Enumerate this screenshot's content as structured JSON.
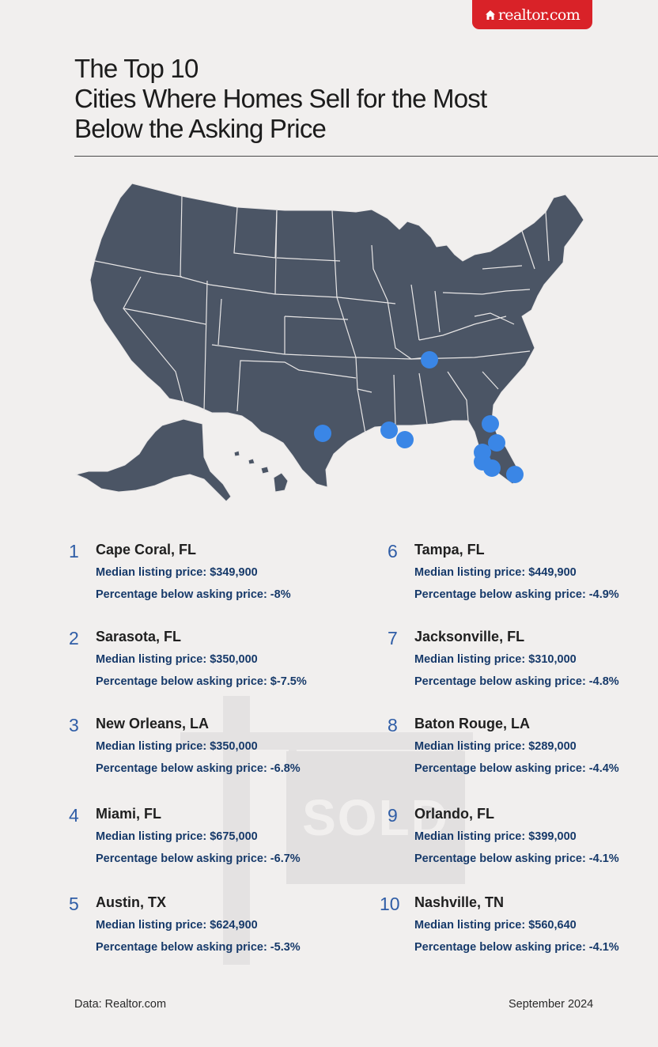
{
  "brand": {
    "logo_text": "realtor.com",
    "color": "#d92228"
  },
  "title": {
    "line1": "The Top 10",
    "line2": "Cities Where Homes Sell for the Most",
    "line3": "Below the Asking Price"
  },
  "map": {
    "land_color": "#4b5565",
    "marker_color": "#3a86e6",
    "watermark_text": "SOLD"
  },
  "cities": [
    {
      "rank": "1",
      "name": "Cape Coral, FL",
      "median_line": "Median listing price: $349,900",
      "pct_line": "Percentage below asking price: -8%"
    },
    {
      "rank": "2",
      "name": "Sarasota, FL",
      "median_line": "Median listing price: $350,000",
      "pct_line": "Percentage below asking price: $-7.5%"
    },
    {
      "rank": "3",
      "name": "New Orleans, LA",
      "median_line": "Median listing price: $350,000",
      "pct_line": "Percentage below asking price: -6.8%"
    },
    {
      "rank": "4",
      "name": "Miami, FL",
      "median_line": "Median listing price: $675,000",
      "pct_line": "Percentage below asking price: -6.7%"
    },
    {
      "rank": "5",
      "name": "Austin, TX",
      "median_line": "Median listing price: $624,900",
      "pct_line": "Percentage below asking price: -5.3%"
    },
    {
      "rank": "6",
      "name": "Tampa, FL",
      "median_line": "Median listing price: $449,900",
      "pct_line": "Percentage below asking price: -4.9%"
    },
    {
      "rank": "7",
      "name": "Jacksonville, FL",
      "median_line": "Median listing price: $310,000",
      "pct_line": "Percentage below asking price: -4.8%"
    },
    {
      "rank": "8",
      "name": "Baton Rouge, LA",
      "median_line": "Median listing price: $289,000",
      "pct_line": "Percentage below asking price: -4.4%"
    },
    {
      "rank": "9",
      "name": "Orlando, FL",
      "median_line": "Median listing price: $399,000",
      "pct_line": "Percentage below asking price: -4.1%"
    },
    {
      "rank": "10",
      "name": "Nashville, TN",
      "median_line": "Median listing price: $560,640",
      "pct_line": "Percentage below asking price: -4.1%"
    }
  ],
  "footer": {
    "source": "Data: Realtor.com",
    "date": "September 2024"
  }
}
